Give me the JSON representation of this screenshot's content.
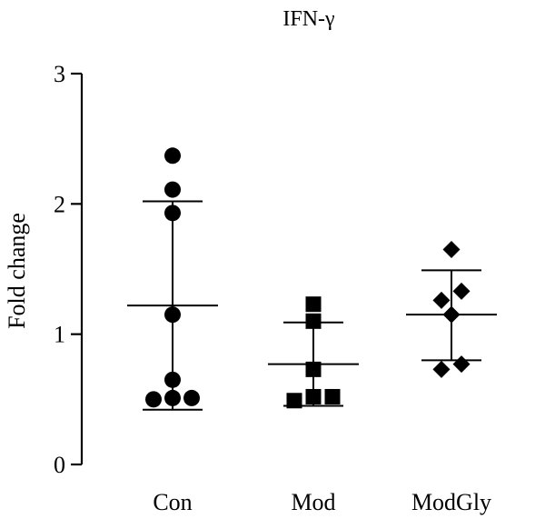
{
  "chart_data": {
    "type": "scatter",
    "title": "IFN-γ",
    "xlabel": "",
    "ylabel": "Fold change",
    "ylim": [
      0,
      3
    ],
    "yticks": [
      0,
      1,
      2,
      3
    ],
    "categories": [
      "Con",
      "Mod",
      "ModGly"
    ],
    "grid": false,
    "legend": "none",
    "groups": [
      {
        "category": "Con",
        "marker": "circle",
        "points": [
          0.5,
          0.51,
          0.51,
          0.65,
          1.15,
          1.93,
          2.11,
          2.37
        ],
        "mean": 1.22,
        "sd_low": 0.42,
        "sd_high": 2.02
      },
      {
        "category": "Mod",
        "marker": "square",
        "points": [
          0.49,
          0.52,
          0.52,
          0.73,
          1.1,
          1.23
        ],
        "mean": 0.77,
        "sd_low": 0.45,
        "sd_high": 1.09
      },
      {
        "category": "ModGly",
        "marker": "diamond",
        "points": [
          0.73,
          0.77,
          1.15,
          1.26,
          1.33,
          1.65
        ],
        "mean": 1.15,
        "sd_low": 0.8,
        "sd_high": 1.49
      }
    ]
  }
}
